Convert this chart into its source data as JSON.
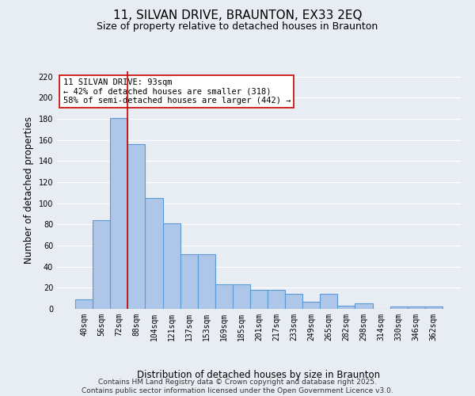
{
  "title": "11, SILVAN DRIVE, BRAUNTON, EX33 2EQ",
  "subtitle": "Size of property relative to detached houses in Braunton",
  "xlabel": "Distribution of detached houses by size in Braunton",
  "ylabel": "Number of detached properties",
  "categories": [
    "40sqm",
    "56sqm",
    "72sqm",
    "88sqm",
    "104sqm",
    "121sqm",
    "137sqm",
    "153sqm",
    "169sqm",
    "185sqm",
    "201sqm",
    "217sqm",
    "233sqm",
    "249sqm",
    "265sqm",
    "282sqm",
    "298sqm",
    "314sqm",
    "330sqm",
    "346sqm",
    "362sqm"
  ],
  "values": [
    9,
    84,
    181,
    156,
    105,
    81,
    52,
    52,
    23,
    23,
    18,
    18,
    14,
    7,
    14,
    3,
    5,
    0,
    2,
    2,
    2
  ],
  "bar_color": "#aec6e8",
  "bar_edge_color": "#5b9bd5",
  "bar_edge_width": 0.8,
  "vline_x": 2.5,
  "vline_color": "#cc0000",
  "annotation_text": "11 SILVAN DRIVE: 93sqm\n← 42% of detached houses are smaller (318)\n58% of semi-detached houses are larger (442) →",
  "annotation_box_color": "#ffffff",
  "annotation_box_edge_color": "#cc0000",
  "ylim": [
    0,
    225
  ],
  "yticks": [
    0,
    20,
    40,
    60,
    80,
    100,
    120,
    140,
    160,
    180,
    200,
    220
  ],
  "background_color": "#e8edf4",
  "grid_color": "#ffffff",
  "footer_text": "Contains HM Land Registry data © Crown copyright and database right 2025.\nContains public sector information licensed under the Open Government Licence v3.0.",
  "title_fontsize": 11,
  "subtitle_fontsize": 9,
  "xlabel_fontsize": 8.5,
  "ylabel_fontsize": 8.5,
  "tick_fontsize": 7,
  "annotation_fontsize": 7.5,
  "footer_fontsize": 6.5
}
